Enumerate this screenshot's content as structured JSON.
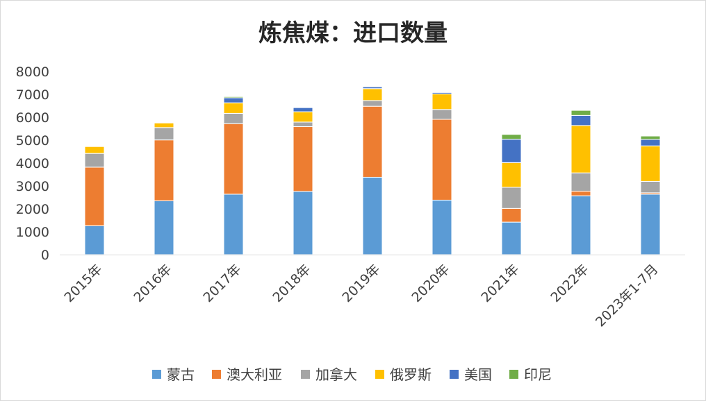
{
  "chart_data": {
    "type": "bar",
    "stacked": true,
    "title": "炼焦煤：进口数量",
    "xlabel": "",
    "ylabel": "",
    "ylim": [
      0,
      8000
    ],
    "yticks": [
      0,
      1000,
      2000,
      3000,
      4000,
      5000,
      6000,
      7000,
      8000
    ],
    "grid": false,
    "legend_position": "bottom",
    "categories": [
      "2015年",
      "2016年",
      "2017年",
      "2018年",
      "2019年",
      "2020年",
      "2021年",
      "2022年",
      "2023年1-7月"
    ],
    "series": [
      {
        "name": "蒙古",
        "color": "#5b9bd5",
        "values": [
          1260,
          2350,
          2640,
          2760,
          3380,
          2380,
          1420,
          2570,
          2640
        ]
      },
      {
        "name": "澳大利亚",
        "color": "#ed7d31",
        "values": [
          2560,
          2660,
          3080,
          2830,
          3100,
          3530,
          600,
          200,
          60
        ]
      },
      {
        "name": "加拿大",
        "color": "#a5a5a5",
        "values": [
          600,
          540,
          450,
          200,
          250,
          430,
          920,
          800,
          500
        ]
      },
      {
        "name": "俄罗斯",
        "color": "#ffc000",
        "values": [
          300,
          200,
          460,
          450,
          520,
          680,
          1080,
          2070,
          1550
        ]
      },
      {
        "name": "美国",
        "color": "#4472c4",
        "values": [
          0,
          0,
          220,
          180,
          80,
          60,
          1020,
          440,
          280
        ]
      },
      {
        "name": "印尼",
        "color": "#70ad47",
        "values": [
          0,
          0,
          50,
          0,
          0,
          0,
          210,
          220,
          150
        ]
      }
    ]
  }
}
